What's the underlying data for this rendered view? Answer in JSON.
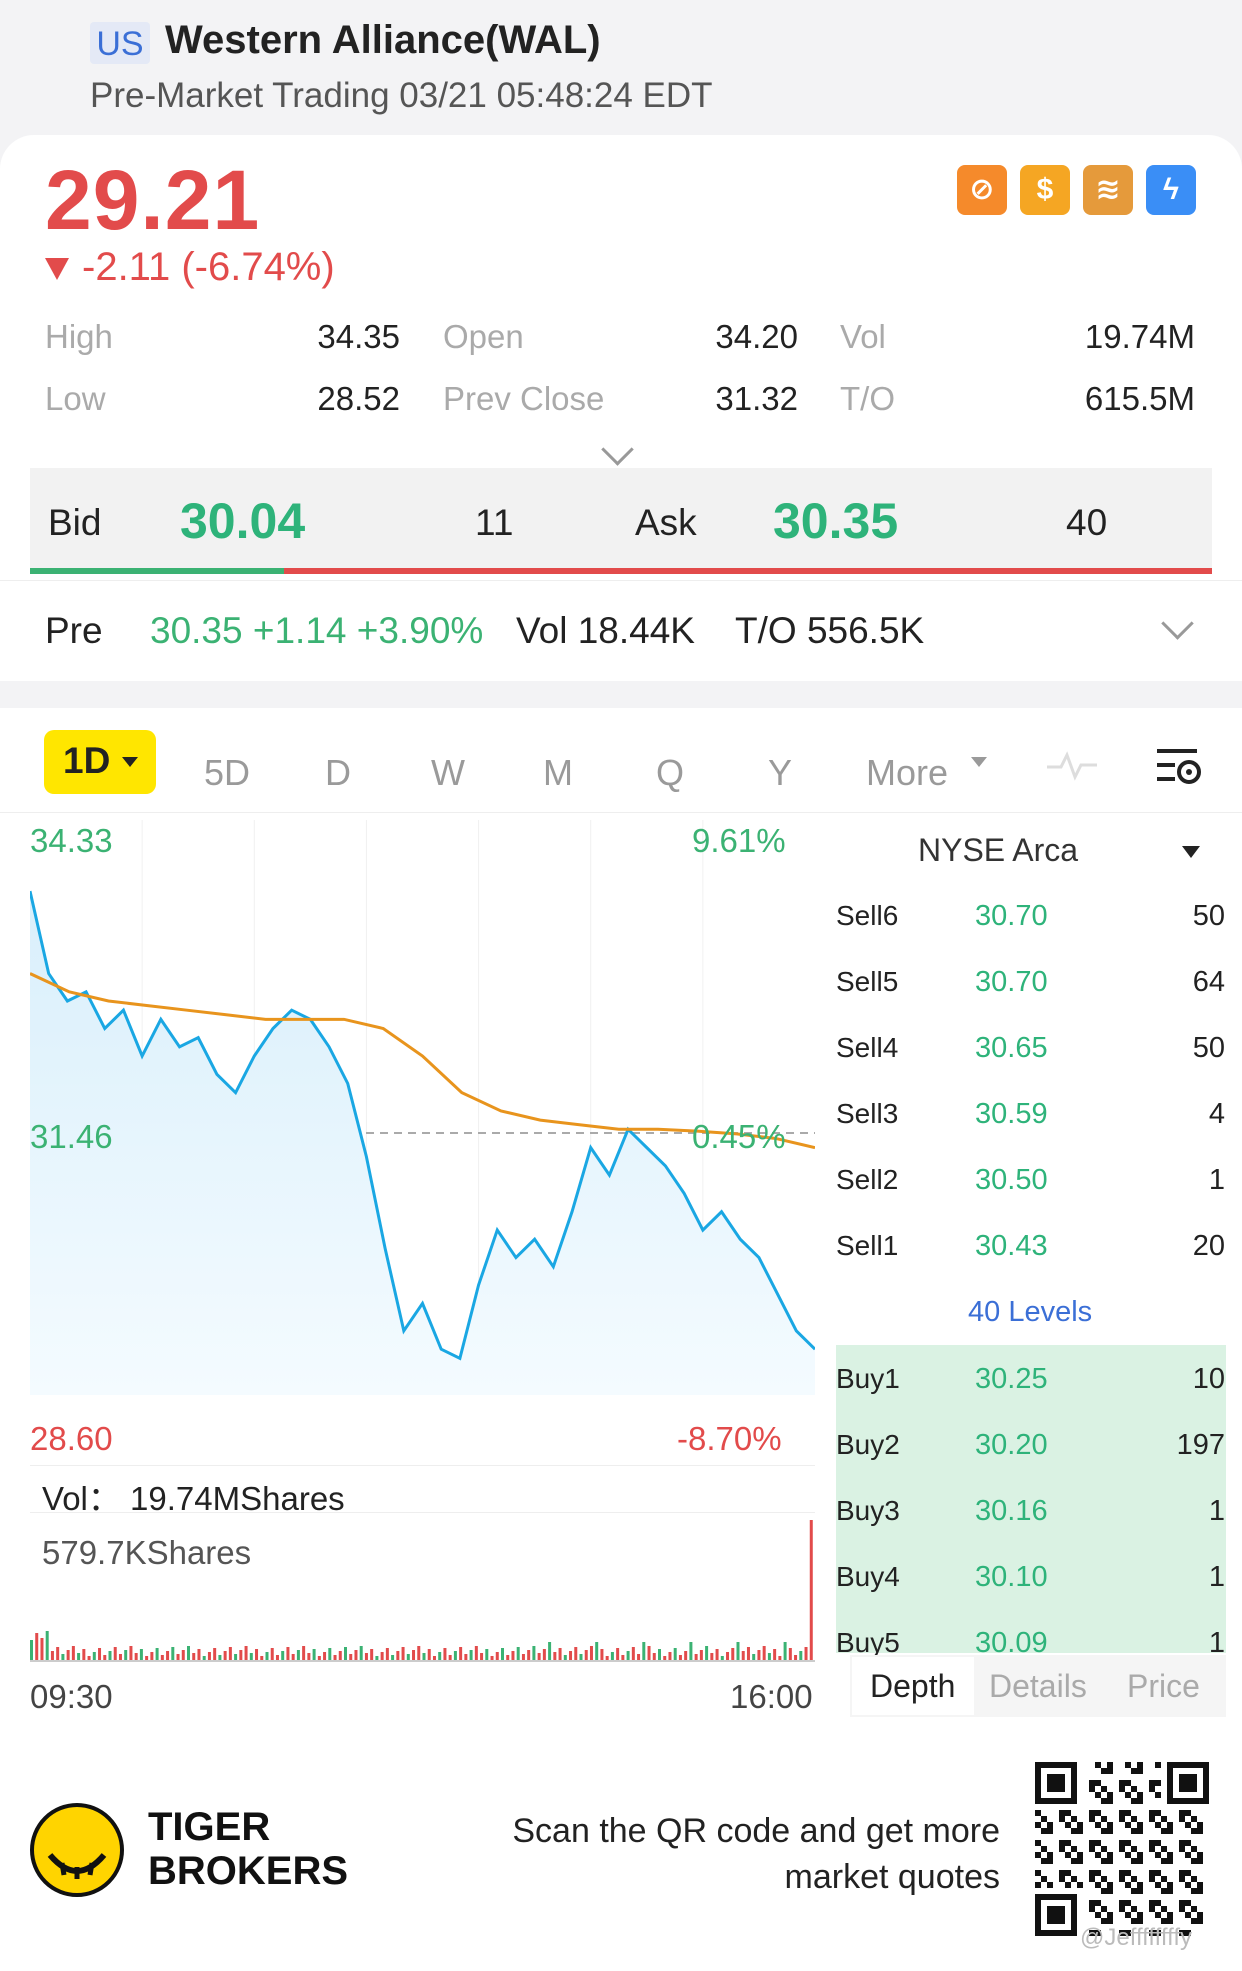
{
  "header": {
    "market_tag": "US",
    "company": "Western Alliance(WAL)",
    "status": "Pre-Market Trading 03/21 05:48:24 EDT"
  },
  "quote": {
    "price": "29.21",
    "change": "-2.11 (-6.74%)",
    "badges": [
      {
        "icon": "no-symbol-icon",
        "color": "#f58a2b"
      },
      {
        "icon": "dollar-icon",
        "color": "#f5a623"
      },
      {
        "icon": "stack-a-icon",
        "color": "#e59a3b"
      },
      {
        "icon": "flash-icon",
        "color": "#3a8ef6"
      }
    ],
    "stats": {
      "high_label": "High",
      "high": "34.35",
      "low_label": "Low",
      "low": "28.52",
      "open_label": "Open",
      "open": "34.20",
      "prev_label": "Prev Close",
      "prev": "31.32",
      "vol_label": "Vol",
      "vol": "19.74M",
      "to_label": "T/O",
      "to": "615.5M"
    }
  },
  "bidask": {
    "bid_label": "Bid",
    "bid": "30.04",
    "bid_qty": "11",
    "ask_label": "Ask",
    "ask": "30.35",
    "ask_qty": "40"
  },
  "pre": {
    "label": "Pre",
    "quote": "30.35 +1.14 +3.90%",
    "vol": "Vol 18.44K",
    "to": "T/O 556.5K"
  },
  "tabs": {
    "active": "1D",
    "items": [
      "5D",
      "D",
      "W",
      "M",
      "Q",
      "Y"
    ],
    "more": "More"
  },
  "chart_data": {
    "type": "line",
    "y_top": "34.33",
    "y_mid": "31.46",
    "y_bottom": "28.60",
    "pct_top": "9.61%",
    "pct_mid": "0.45%",
    "pct_bottom": "-8.70%",
    "x_start": "09:30",
    "x_end": "16:00",
    "ylim": [
      28.6,
      34.33
    ],
    "series": [
      {
        "values": [
          34.1,
          33.2,
          32.9,
          33.0,
          32.6,
          32.8,
          32.3,
          32.7,
          32.4,
          32.5,
          32.1,
          31.9,
          32.3,
          32.6,
          32.8,
          32.7,
          32.4,
          32.0,
          31.2,
          30.2,
          29.3,
          29.6,
          29.1,
          29.0,
          29.8,
          30.4,
          30.1,
          30.3,
          30.0,
          30.6,
          31.3,
          31.0,
          31.5,
          31.3,
          31.1,
          30.8,
          30.4,
          30.6,
          30.3,
          30.1,
          29.7,
          29.3,
          29.1
        ]
      },
      {
        "values": [
          33.2,
          33.0,
          32.9,
          32.85,
          32.8,
          32.75,
          32.7,
          32.7,
          32.7,
          32.6,
          32.3,
          31.9,
          31.7,
          31.6,
          31.55,
          31.5,
          31.5,
          31.48,
          31.45,
          31.4,
          31.3
        ]
      }
    ],
    "vol_label": "Vol：",
    "vol_value": "19.74MShares",
    "vol_peak": "579.7KShares"
  },
  "orderbook": {
    "exchange": "NYSE Arca",
    "sells": [
      {
        "label": "Sell6",
        "price": "30.70",
        "qty": "50"
      },
      {
        "label": "Sell5",
        "price": "30.70",
        "qty": "64"
      },
      {
        "label": "Sell4",
        "price": "30.65",
        "qty": "50"
      },
      {
        "label": "Sell3",
        "price": "30.59",
        "qty": "4"
      },
      {
        "label": "Sell2",
        "price": "30.50",
        "qty": "1"
      },
      {
        "label": "Sell1",
        "price": "30.43",
        "qty": "20"
      }
    ],
    "levels": "40 Levels",
    "buys": [
      {
        "label": "Buy1",
        "price": "30.25",
        "qty": "10"
      },
      {
        "label": "Buy2",
        "price": "30.20",
        "qty": "197"
      },
      {
        "label": "Buy3",
        "price": "30.16",
        "qty": "1"
      },
      {
        "label": "Buy4",
        "price": "30.10",
        "qty": "1"
      },
      {
        "label": "Buy5",
        "price": "30.09",
        "qty": "1"
      }
    ],
    "tabs": [
      "Depth",
      "Details",
      "Price"
    ]
  },
  "footer": {
    "brand_line1": "TIGER",
    "brand_line2": "BROKERS",
    "scan_text": "Scan the QR code and get more market quotes",
    "watermark": "@Jeffffffffy"
  }
}
